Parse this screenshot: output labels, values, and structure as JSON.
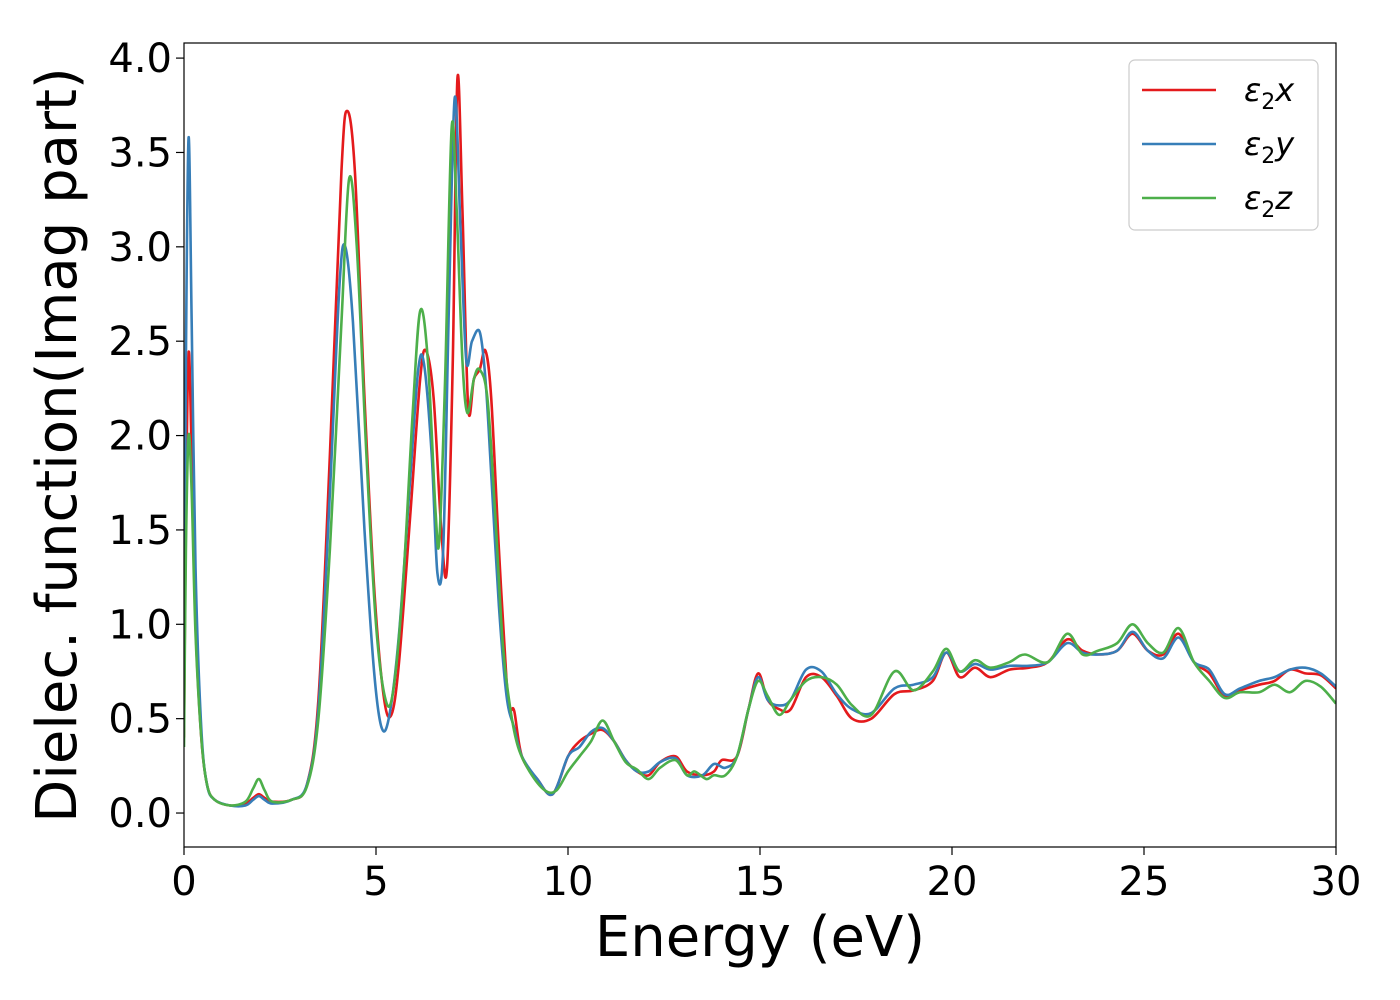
{
  "chart_data": {
    "type": "line",
    "xlabel": "Energy (eV)",
    "ylabel": "Dielec. function(Imag part)",
    "xlim": [
      0,
      30
    ],
    "ylim": [
      -0.18,
      4.08
    ],
    "xticks": [
      0,
      5,
      10,
      15,
      20,
      25,
      30
    ],
    "xtick_labels": [
      "0",
      "5",
      "10",
      "15",
      "20",
      "25",
      "30"
    ],
    "yticks": [
      0.0,
      0.5,
      1.0,
      1.5,
      2.0,
      2.5,
      3.0,
      3.5,
      4.0
    ],
    "ytick_labels": [
      "0.0",
      "0.5",
      "1.0",
      "1.5",
      "2.0",
      "2.5",
      "3.0",
      "3.5",
      "4.0"
    ],
    "grid": false,
    "legend_position": "top-right",
    "series": [
      {
        "name": "ε₂x",
        "legend_base": "ε",
        "legend_sub": "2",
        "legend_suffix": "x",
        "color": "#e41a1c",
        "points": [
          [
            0,
            0.4
          ],
          [
            0.05,
            1.6
          ],
          [
            0.12,
            2.44
          ],
          [
            0.2,
            1.9
          ],
          [
            0.3,
            1.0
          ],
          [
            0.45,
            0.4
          ],
          [
            0.6,
            0.15
          ],
          [
            0.8,
            0.07
          ],
          [
            1.2,
            0.04
          ],
          [
            1.6,
            0.05
          ],
          [
            1.8,
            0.08
          ],
          [
            1.95,
            0.1
          ],
          [
            2.1,
            0.08
          ],
          [
            2.3,
            0.06
          ],
          [
            2.8,
            0.07
          ],
          [
            3.2,
            0.15
          ],
          [
            3.5,
            0.6
          ],
          [
            3.8,
            1.9
          ],
          [
            4.1,
            3.4
          ],
          [
            4.25,
            3.72
          ],
          [
            4.45,
            3.4
          ],
          [
            4.7,
            2.2
          ],
          [
            4.95,
            1.2
          ],
          [
            5.2,
            0.62
          ],
          [
            5.4,
            0.52
          ],
          [
            5.6,
            0.8
          ],
          [
            5.9,
            1.6
          ],
          [
            6.15,
            2.3
          ],
          [
            6.3,
            2.45
          ],
          [
            6.5,
            2.2
          ],
          [
            6.7,
            1.5
          ],
          [
            6.85,
            1.3
          ],
          [
            7.0,
            2.4
          ],
          [
            7.12,
            3.89
          ],
          [
            7.25,
            3.2
          ],
          [
            7.4,
            2.15
          ],
          [
            7.55,
            2.3
          ],
          [
            7.7,
            2.35
          ],
          [
            7.85,
            2.45
          ],
          [
            8.0,
            2.2
          ],
          [
            8.2,
            1.4
          ],
          [
            8.4,
            0.7
          ],
          [
            8.5,
            0.55
          ],
          [
            8.6,
            0.54
          ],
          [
            8.8,
            0.3
          ],
          [
            9.2,
            0.18
          ],
          [
            9.6,
            0.1
          ],
          [
            10.0,
            0.3
          ],
          [
            10.3,
            0.38
          ],
          [
            10.6,
            0.42
          ],
          [
            10.9,
            0.44
          ],
          [
            11.2,
            0.38
          ],
          [
            11.5,
            0.28
          ],
          [
            11.8,
            0.22
          ],
          [
            12.1,
            0.2
          ],
          [
            12.4,
            0.27
          ],
          [
            12.8,
            0.3
          ],
          [
            13.1,
            0.22
          ],
          [
            13.5,
            0.2
          ],
          [
            13.8,
            0.22
          ],
          [
            14.0,
            0.28
          ],
          [
            14.4,
            0.3
          ],
          [
            14.7,
            0.55
          ],
          [
            14.95,
            0.74
          ],
          [
            15.2,
            0.6
          ],
          [
            15.5,
            0.55
          ],
          [
            15.8,
            0.55
          ],
          [
            16.2,
            0.72
          ],
          [
            16.6,
            0.72
          ],
          [
            17.0,
            0.62
          ],
          [
            17.4,
            0.5
          ],
          [
            17.9,
            0.5
          ],
          [
            18.5,
            0.63
          ],
          [
            19.0,
            0.65
          ],
          [
            19.5,
            0.7
          ],
          [
            19.85,
            0.85
          ],
          [
            20.2,
            0.72
          ],
          [
            20.6,
            0.77
          ],
          [
            21.0,
            0.72
          ],
          [
            21.5,
            0.76
          ],
          [
            22.0,
            0.77
          ],
          [
            22.5,
            0.8
          ],
          [
            23.0,
            0.92
          ],
          [
            23.4,
            0.86
          ],
          [
            23.8,
            0.84
          ],
          [
            24.3,
            0.86
          ],
          [
            24.7,
            0.95
          ],
          [
            25.1,
            0.86
          ],
          [
            25.5,
            0.84
          ],
          [
            25.9,
            0.95
          ],
          [
            26.3,
            0.8
          ],
          [
            26.7,
            0.74
          ],
          [
            27.1,
            0.62
          ],
          [
            27.5,
            0.65
          ],
          [
            28.0,
            0.68
          ],
          [
            28.4,
            0.7
          ],
          [
            28.8,
            0.76
          ],
          [
            29.2,
            0.74
          ],
          [
            29.6,
            0.73
          ],
          [
            30.0,
            0.66
          ]
        ]
      },
      {
        "name": "ε₂y",
        "legend_base": "ε",
        "legend_sub": "2",
        "legend_suffix": "y",
        "color": "#377eb8",
        "points": [
          [
            0,
            0.6
          ],
          [
            0.05,
            2.4
          ],
          [
            0.12,
            3.58
          ],
          [
            0.2,
            2.6
          ],
          [
            0.3,
            1.3
          ],
          [
            0.45,
            0.45
          ],
          [
            0.6,
            0.15
          ],
          [
            0.8,
            0.07
          ],
          [
            1.2,
            0.04
          ],
          [
            1.6,
            0.04
          ],
          [
            1.8,
            0.07
          ],
          [
            1.95,
            0.09
          ],
          [
            2.1,
            0.07
          ],
          [
            2.3,
            0.05
          ],
          [
            2.8,
            0.07
          ],
          [
            3.2,
            0.15
          ],
          [
            3.5,
            0.55
          ],
          [
            3.8,
            1.7
          ],
          [
            4.05,
            2.8
          ],
          [
            4.2,
            3.0
          ],
          [
            4.4,
            2.6
          ],
          [
            4.7,
            1.5
          ],
          [
            4.95,
            0.75
          ],
          [
            5.15,
            0.45
          ],
          [
            5.35,
            0.52
          ],
          [
            5.6,
            0.95
          ],
          [
            5.9,
            1.8
          ],
          [
            6.1,
            2.35
          ],
          [
            6.25,
            2.38
          ],
          [
            6.45,
            1.9
          ],
          [
            6.6,
            1.27
          ],
          [
            6.75,
            1.4
          ],
          [
            6.9,
            2.7
          ],
          [
            7.05,
            3.79
          ],
          [
            7.2,
            3.1
          ],
          [
            7.35,
            2.4
          ],
          [
            7.5,
            2.5
          ],
          [
            7.7,
            2.55
          ],
          [
            7.85,
            2.3
          ],
          [
            8.0,
            1.8
          ],
          [
            8.2,
            1.1
          ],
          [
            8.4,
            0.62
          ],
          [
            8.6,
            0.45
          ],
          [
            8.8,
            0.3
          ],
          [
            9.2,
            0.18
          ],
          [
            9.6,
            0.1
          ],
          [
            10.0,
            0.3
          ],
          [
            10.3,
            0.35
          ],
          [
            10.6,
            0.43
          ],
          [
            10.9,
            0.45
          ],
          [
            11.2,
            0.38
          ],
          [
            11.5,
            0.28
          ],
          [
            11.8,
            0.22
          ],
          [
            12.1,
            0.22
          ],
          [
            12.4,
            0.27
          ],
          [
            12.8,
            0.29
          ],
          [
            13.1,
            0.2
          ],
          [
            13.5,
            0.2
          ],
          [
            13.8,
            0.26
          ],
          [
            14.1,
            0.24
          ],
          [
            14.4,
            0.3
          ],
          [
            14.7,
            0.55
          ],
          [
            14.95,
            0.72
          ],
          [
            15.2,
            0.6
          ],
          [
            15.5,
            0.57
          ],
          [
            15.8,
            0.6
          ],
          [
            16.2,
            0.76
          ],
          [
            16.6,
            0.75
          ],
          [
            17.0,
            0.63
          ],
          [
            17.4,
            0.55
          ],
          [
            17.9,
            0.53
          ],
          [
            18.5,
            0.66
          ],
          [
            19.0,
            0.68
          ],
          [
            19.5,
            0.72
          ],
          [
            19.85,
            0.85
          ],
          [
            20.2,
            0.75
          ],
          [
            20.6,
            0.79
          ],
          [
            21.0,
            0.76
          ],
          [
            21.5,
            0.78
          ],
          [
            22.0,
            0.78
          ],
          [
            22.5,
            0.8
          ],
          [
            23.0,
            0.9
          ],
          [
            23.4,
            0.85
          ],
          [
            23.8,
            0.84
          ],
          [
            24.3,
            0.86
          ],
          [
            24.7,
            0.96
          ],
          [
            25.1,
            0.86
          ],
          [
            25.5,
            0.82
          ],
          [
            25.9,
            0.93
          ],
          [
            26.3,
            0.8
          ],
          [
            26.7,
            0.76
          ],
          [
            27.1,
            0.63
          ],
          [
            27.5,
            0.66
          ],
          [
            28.0,
            0.7
          ],
          [
            28.4,
            0.72
          ],
          [
            28.8,
            0.76
          ],
          [
            29.2,
            0.77
          ],
          [
            29.6,
            0.74
          ],
          [
            30.0,
            0.67
          ]
        ]
      },
      {
        "name": "ε₂z",
        "legend_base": "ε",
        "legend_sub": "2",
        "legend_suffix": "z",
        "color": "#4daf4a",
        "points": [
          [
            0,
            0.35
          ],
          [
            0.05,
            1.4
          ],
          [
            0.12,
            2.0
          ],
          [
            0.2,
            1.7
          ],
          [
            0.3,
            0.95
          ],
          [
            0.45,
            0.4
          ],
          [
            0.6,
            0.15
          ],
          [
            0.8,
            0.07
          ],
          [
            1.2,
            0.04
          ],
          [
            1.6,
            0.06
          ],
          [
            1.8,
            0.13
          ],
          [
            1.95,
            0.18
          ],
          [
            2.1,
            0.12
          ],
          [
            2.3,
            0.06
          ],
          [
            2.8,
            0.07
          ],
          [
            3.2,
            0.14
          ],
          [
            3.5,
            0.5
          ],
          [
            3.8,
            1.4
          ],
          [
            4.1,
            2.6
          ],
          [
            4.3,
            3.36
          ],
          [
            4.5,
            3.0
          ],
          [
            4.75,
            1.9
          ],
          [
            5.0,
            1.0
          ],
          [
            5.25,
            0.6
          ],
          [
            5.45,
            0.65
          ],
          [
            5.7,
            1.2
          ],
          [
            5.95,
            2.1
          ],
          [
            6.15,
            2.66
          ],
          [
            6.35,
            2.4
          ],
          [
            6.55,
            1.6
          ],
          [
            6.65,
            1.45
          ],
          [
            6.8,
            2.3
          ],
          [
            6.97,
            3.63
          ],
          [
            7.1,
            3.2
          ],
          [
            7.25,
            2.4
          ],
          [
            7.38,
            2.12
          ],
          [
            7.55,
            2.3
          ],
          [
            7.7,
            2.35
          ],
          [
            7.9,
            2.2
          ],
          [
            8.1,
            1.6
          ],
          [
            8.3,
            0.9
          ],
          [
            8.5,
            0.55
          ],
          [
            8.7,
            0.35
          ],
          [
            9.0,
            0.22
          ],
          [
            9.4,
            0.12
          ],
          [
            9.7,
            0.12
          ],
          [
            10.0,
            0.22
          ],
          [
            10.3,
            0.3
          ],
          [
            10.6,
            0.38
          ],
          [
            10.9,
            0.49
          ],
          [
            11.2,
            0.38
          ],
          [
            11.5,
            0.27
          ],
          [
            11.8,
            0.23
          ],
          [
            12.1,
            0.18
          ],
          [
            12.4,
            0.24
          ],
          [
            12.8,
            0.28
          ],
          [
            13.1,
            0.2
          ],
          [
            13.3,
            0.22
          ],
          [
            13.6,
            0.18
          ],
          [
            13.8,
            0.2
          ],
          [
            14.1,
            0.2
          ],
          [
            14.4,
            0.3
          ],
          [
            14.7,
            0.55
          ],
          [
            14.95,
            0.7
          ],
          [
            15.2,
            0.62
          ],
          [
            15.5,
            0.52
          ],
          [
            15.8,
            0.6
          ],
          [
            16.2,
            0.7
          ],
          [
            16.6,
            0.72
          ],
          [
            17.0,
            0.68
          ],
          [
            17.4,
            0.57
          ],
          [
            17.9,
            0.52
          ],
          [
            18.5,
            0.75
          ],
          [
            19.0,
            0.65
          ],
          [
            19.5,
            0.75
          ],
          [
            19.85,
            0.87
          ],
          [
            20.2,
            0.75
          ],
          [
            20.6,
            0.81
          ],
          [
            21.0,
            0.77
          ],
          [
            21.5,
            0.8
          ],
          [
            21.9,
            0.84
          ],
          [
            22.5,
            0.8
          ],
          [
            23.0,
            0.95
          ],
          [
            23.4,
            0.84
          ],
          [
            23.8,
            0.86
          ],
          [
            24.3,
            0.9
          ],
          [
            24.7,
            1.0
          ],
          [
            25.1,
            0.9
          ],
          [
            25.5,
            0.85
          ],
          [
            25.9,
            0.98
          ],
          [
            26.3,
            0.8
          ],
          [
            26.7,
            0.7
          ],
          [
            27.1,
            0.61
          ],
          [
            27.5,
            0.64
          ],
          [
            28.0,
            0.64
          ],
          [
            28.4,
            0.68
          ],
          [
            28.8,
            0.64
          ],
          [
            29.2,
            0.7
          ],
          [
            29.6,
            0.67
          ],
          [
            30.0,
            0.58
          ]
        ]
      }
    ]
  }
}
